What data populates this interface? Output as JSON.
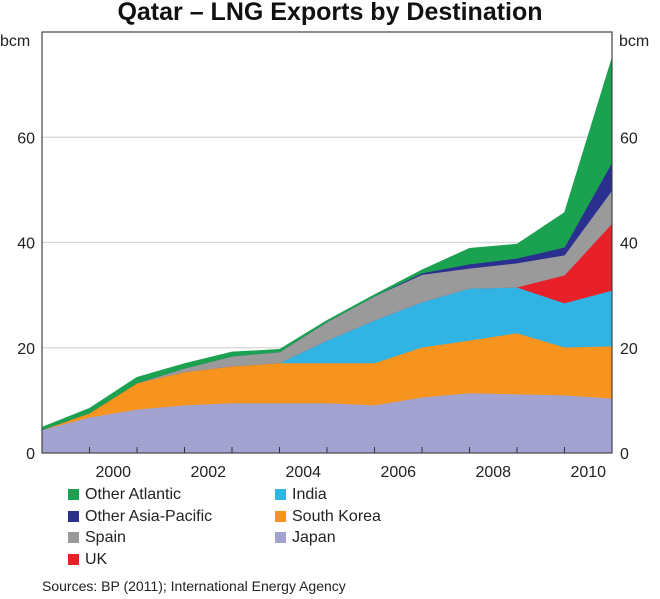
{
  "chart_data": {
    "type": "area",
    "stacked": true,
    "title": "Qatar – LNG Exports by Destination",
    "ylabel_left": "bcm",
    "ylabel_right": "bcm",
    "ylim": [
      0,
      80
    ],
    "yticks": [
      0,
      20,
      40,
      60
    ],
    "xlim": [
      1999,
      2011
    ],
    "x": [
      1999,
      2000,
      2001,
      2002,
      2003,
      2004,
      2005,
      2006,
      2007,
      2008,
      2009,
      2010,
      2011
    ],
    "xtick_marks": [
      2000,
      2001,
      2002,
      2003,
      2004,
      2005,
      2006,
      2007,
      2008,
      2009,
      2010
    ],
    "xtick_labels": [
      "2000",
      "2002",
      "2004",
      "2006",
      "2008",
      "2010"
    ],
    "grid": true,
    "legend_placement": "bottom",
    "series": [
      {
        "name": "Japan",
        "color": "#a3a3d1",
        "values": [
          4.4,
          6.8,
          8.3,
          9.1,
          9.5,
          9.5,
          9.5,
          9.1,
          10.6,
          11.4,
          11.2,
          11.0,
          10.4
        ]
      },
      {
        "name": "South Korea",
        "color": "#f7941d",
        "values": [
          0,
          0.8,
          5.0,
          6.3,
          7.0,
          7.6,
          7.6,
          8.0,
          9.5,
          10.0,
          11.6,
          9.1,
          9.9
        ]
      },
      {
        "name": "India",
        "color": "#31b3e4",
        "values": [
          0,
          0,
          0,
          0,
          0,
          0,
          4.3,
          8.1,
          8.6,
          9.9,
          8.7,
          8.4,
          10.6
        ]
      },
      {
        "name": "UK",
        "color": "#e8202a",
        "values": [
          0,
          0,
          0,
          0,
          0,
          0,
          0,
          0,
          0,
          0,
          0,
          5.3,
          12.7
        ]
      },
      {
        "name": "Spain",
        "color": "#9a9a9a",
        "values": [
          0,
          0,
          0,
          0.7,
          1.9,
          2.1,
          3.5,
          4.6,
          5.2,
          3.8,
          4.6,
          3.8,
          6.3
        ]
      },
      {
        "name": "Other Asia-Pacific",
        "color": "#2b2f8f",
        "values": [
          0,
          0,
          0,
          0,
          0,
          0,
          0,
          0,
          0.3,
          0.8,
          0.9,
          1.5,
          5.3
        ]
      },
      {
        "name": "Other Atlantic",
        "color": "#1aa251",
        "values": [
          0.5,
          0.9,
          1.1,
          0.9,
          0.8,
          0.5,
          0.3,
          0.3,
          0.6,
          3.0,
          2.7,
          6.6,
          19.9
        ]
      }
    ],
    "legend_order": [
      "Other Atlantic",
      "Other Asia-Pacific",
      "Spain",
      "UK",
      "India",
      "South Korea",
      "Japan"
    ],
    "source": "Sources: BP (2011); International Energy Agency"
  }
}
